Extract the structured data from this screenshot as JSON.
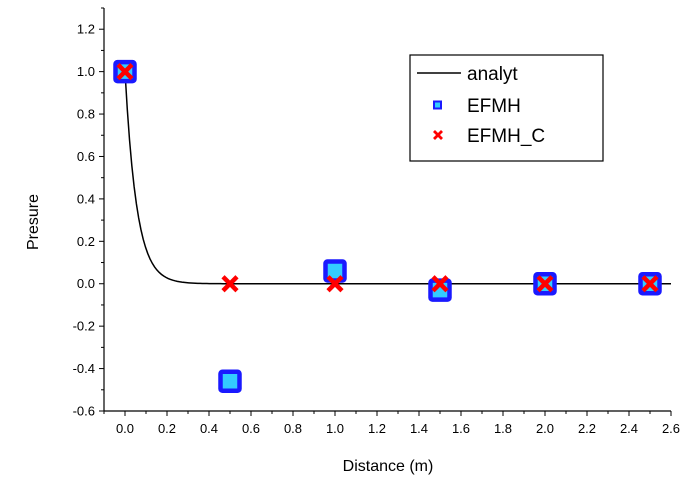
{
  "chart_data": {
    "type": "scatter",
    "xlabel": "Distance (m)",
    "ylabel": "Presure",
    "xlim": [
      -0.1,
      2.6
    ],
    "ylim": [
      -0.6,
      1.3
    ],
    "x_ticks": [
      "0.0",
      "0.2",
      "0.4",
      "0.6",
      "0.8",
      "1.0",
      "1.2",
      "1.4",
      "1.6",
      "1.8",
      "2.0",
      "2.2",
      "2.4",
      "2.6"
    ],
    "y_ticks": [
      "-0.6",
      "-0.4",
      "-0.2",
      "0.0",
      "0.2",
      "0.4",
      "0.6",
      "0.8",
      "1.0",
      "1.2"
    ],
    "legend_position": "top-right",
    "series": [
      {
        "name": "analyt",
        "kind": "line",
        "color": "#000000",
        "decay_rate": 18,
        "x_start": 0.0,
        "x_end": 2.6
      },
      {
        "name": "EFMH",
        "kind": "square",
        "fill": "#33ccff",
        "stroke": "#1a1aff",
        "x": [
          0.0,
          0.5,
          1.0,
          1.5,
          2.0,
          2.5
        ],
        "y": [
          1.0,
          -0.46,
          0.06,
          -0.03,
          0.0,
          0.0
        ]
      },
      {
        "name": "EFMH_C",
        "kind": "cross",
        "color": "#ff0000",
        "x": [
          0.0,
          0.5,
          1.0,
          1.5,
          2.0,
          2.5
        ],
        "y": [
          1.0,
          0.0,
          0.0,
          0.0,
          0.0,
          0.0
        ]
      }
    ]
  }
}
